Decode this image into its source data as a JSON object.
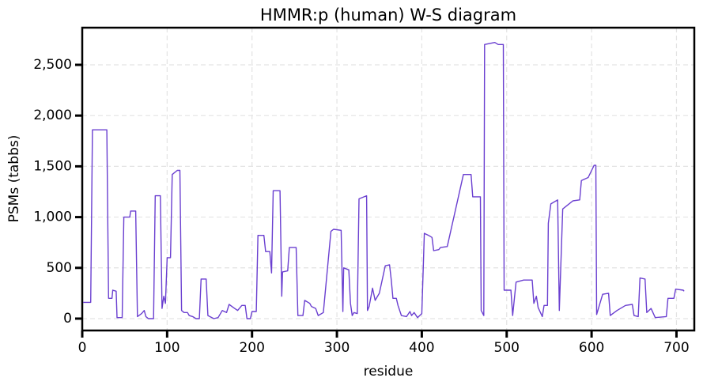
{
  "chart_data": {
    "type": "line",
    "title": "HMMR:p (human) W-S diagram",
    "x_label": "residue",
    "y_label": "PSMs (tabbs)",
    "x": [
      1,
      10,
      12,
      29,
      31,
      35,
      36,
      40,
      41,
      47,
      49,
      56,
      57,
      63,
      65,
      70,
      73,
      75,
      78,
      84,
      86,
      92,
      94,
      96,
      98,
      100,
      104,
      106,
      112,
      115,
      117,
      120,
      124,
      126,
      130,
      134,
      138,
      140,
      146,
      148,
      155,
      160,
      165,
      170,
      173,
      178,
      183,
      188,
      192,
      194,
      198,
      200,
      205,
      207,
      214,
      216,
      221,
      223,
      225,
      233,
      235,
      236,
      242,
      244,
      252,
      254,
      260,
      262,
      268,
      270,
      275,
      278,
      284,
      293,
      296,
      305,
      307,
      308,
      314,
      316,
      318,
      320,
      324,
      326,
      332,
      335,
      336,
      338,
      342,
      345,
      350,
      357,
      362,
      364,
      366,
      370,
      372,
      376,
      382,
      386,
      388,
      391,
      395,
      400,
      403,
      408,
      412,
      414,
      420,
      422,
      430,
      449,
      458,
      460,
      469,
      470,
      473,
      474,
      486,
      490,
      496,
      497,
      505,
      507,
      511,
      520,
      530,
      532,
      535,
      537,
      542,
      544,
      548,
      549,
      552,
      560,
      562,
      566,
      572,
      578,
      586,
      588,
      596,
      603,
      605,
      606,
      613,
      620,
      622,
      630,
      640,
      648,
      650,
      655,
      657,
      663,
      665,
      670,
      675,
      688,
      690,
      697,
      699,
      708,
      709
    ],
    "series": [
      {
        "name": "PSMs",
        "color": "#6a3fd0",
        "values": [
          160,
          160,
          1860,
          1860,
          200,
          200,
          280,
          270,
          10,
          10,
          1000,
          1000,
          1060,
          1060,
          20,
          50,
          80,
          20,
          0,
          0,
          1210,
          1210,
          100,
          220,
          150,
          600,
          600,
          1420,
          1460,
          1460,
          80,
          60,
          60,
          30,
          20,
          0,
          0,
          390,
          390,
          30,
          0,
          10,
          80,
          60,
          140,
          110,
          80,
          130,
          130,
          0,
          0,
          70,
          70,
          820,
          820,
          660,
          660,
          450,
          1260,
          1260,
          220,
          460,
          470,
          700,
          700,
          30,
          30,
          180,
          150,
          120,
          100,
          30,
          60,
          860,
          880,
          870,
          70,
          500,
          480,
          150,
          30,
          60,
          50,
          1180,
          1200,
          1210,
          80,
          120,
          300,
          180,
          250,
          520,
          530,
          380,
          200,
          200,
          130,
          30,
          20,
          70,
          30,
          60,
          10,
          50,
          840,
          820,
          800,
          670,
          680,
          700,
          710,
          1420,
          1420,
          1200,
          1200,
          80,
          30,
          2700,
          2720,
          2700,
          2700,
          280,
          280,
          30,
          360,
          380,
          380,
          150,
          220,
          110,
          20,
          130,
          130,
          940,
          1130,
          1170,
          80,
          1080,
          1120,
          1160,
          1170,
          1360,
          1390,
          1510,
          1510,
          40,
          240,
          250,
          30,
          80,
          130,
          140,
          30,
          20,
          400,
          390,
          60,
          100,
          10,
          20,
          200,
          200,
          290,
          280,
          270
        ]
      }
    ],
    "xlim": [
      0,
      721
    ],
    "xticks": [
      0,
      100,
      200,
      300,
      400,
      500,
      600,
      700
    ],
    "ylim": [
      -117,
      2866
    ],
    "yticks": [
      0,
      500,
      {
        "value": 1000,
        "label": "1,000"
      },
      {
        "value": 1500,
        "label": "1,500"
      },
      {
        "value": 2000,
        "label": "2,000"
      },
      {
        "value": 2500,
        "label": "2,500"
      }
    ],
    "grid": true
  }
}
